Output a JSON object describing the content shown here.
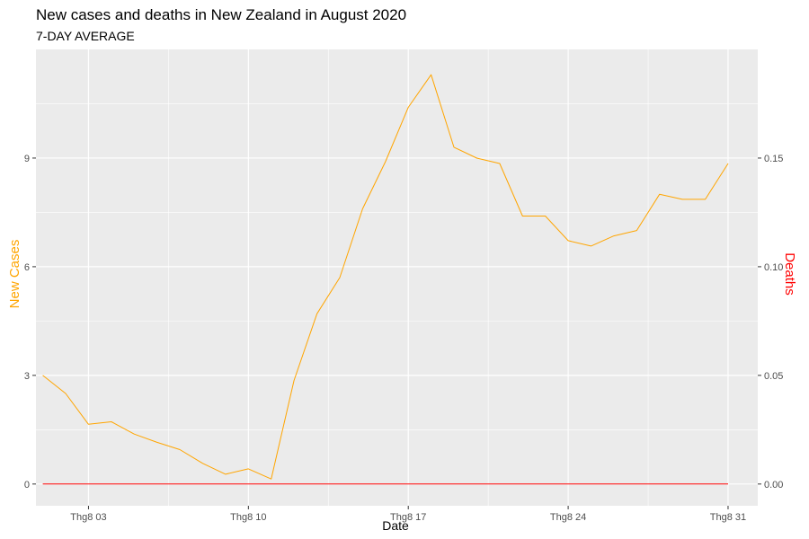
{
  "chart_data": {
    "type": "line",
    "title": "New cases and deaths in New Zealand in August 2020",
    "subtitle": "7-DAY AVERAGE",
    "xlabel": "Date",
    "ylabel_left": "New Cases",
    "ylabel_right": "Deaths",
    "x_tick_labels": [
      "Thg8 03",
      "Thg8 10",
      "Thg8 17",
      "Thg8 24",
      "Thg8 31"
    ],
    "x_tick_days": [
      3,
      10,
      17,
      24,
      31
    ],
    "xlim": [
      0.7,
      32.3
    ],
    "y_left_ticks": [
      0,
      3,
      6,
      9
    ],
    "y_left_tick_labels": [
      "0",
      "3",
      "6",
      "9"
    ],
    "ylim_left": [
      -0.6,
      12.0
    ],
    "y_right_ticks": [
      0.0,
      0.05,
      0.1,
      0.15
    ],
    "y_right_tick_labels": [
      "0.00",
      "0.05",
      "0.10",
      "0.15"
    ],
    "ylim_right": [
      -0.01,
      0.2
    ],
    "grid": true,
    "colors": {
      "panel_bg": "#ebebeb",
      "grid_major": "#ffffff",
      "cases_line": "#ffa500",
      "deaths_line": "#ff0000",
      "left_axis_title": "#ffa500",
      "right_axis_title": "#ff0000"
    },
    "series": [
      {
        "axis": "left",
        "x": [
          1,
          2,
          3,
          4,
          5,
          6,
          7,
          8,
          9,
          10,
          11,
          12,
          13,
          14,
          15,
          16,
          17,
          18,
          19,
          20,
          21,
          22,
          23,
          24,
          25,
          26,
          27,
          28,
          29,
          30,
          31
        ],
        "values": [
          3.0,
          2.5,
          1.65,
          1.72,
          1.38,
          1.15,
          0.95,
          0.57,
          0.27,
          0.42,
          0.14,
          2.86,
          4.7,
          5.7,
          7.6,
          8.9,
          10.4,
          11.3,
          9.3,
          9.0,
          8.85,
          7.4,
          7.4,
          6.72,
          6.57,
          6.85,
          7.0,
          8.0,
          7.86,
          7.86,
          8.85
        ]
      },
      {
        "axis": "right",
        "x": [
          1,
          2,
          3,
          4,
          5,
          6,
          7,
          8,
          9,
          10,
          11,
          12,
          13,
          14,
          15,
          16,
          17,
          18,
          19,
          20,
          21,
          22,
          23,
          24,
          25,
          26,
          27,
          28,
          29,
          30,
          31
        ],
        "values": [
          0,
          0,
          0,
          0,
          0,
          0,
          0,
          0,
          0,
          0,
          0,
          0,
          0,
          0,
          0,
          0,
          0,
          0,
          0,
          0,
          0,
          0,
          0,
          0,
          0,
          0,
          0,
          0,
          0,
          0,
          0
        ]
      }
    ]
  }
}
